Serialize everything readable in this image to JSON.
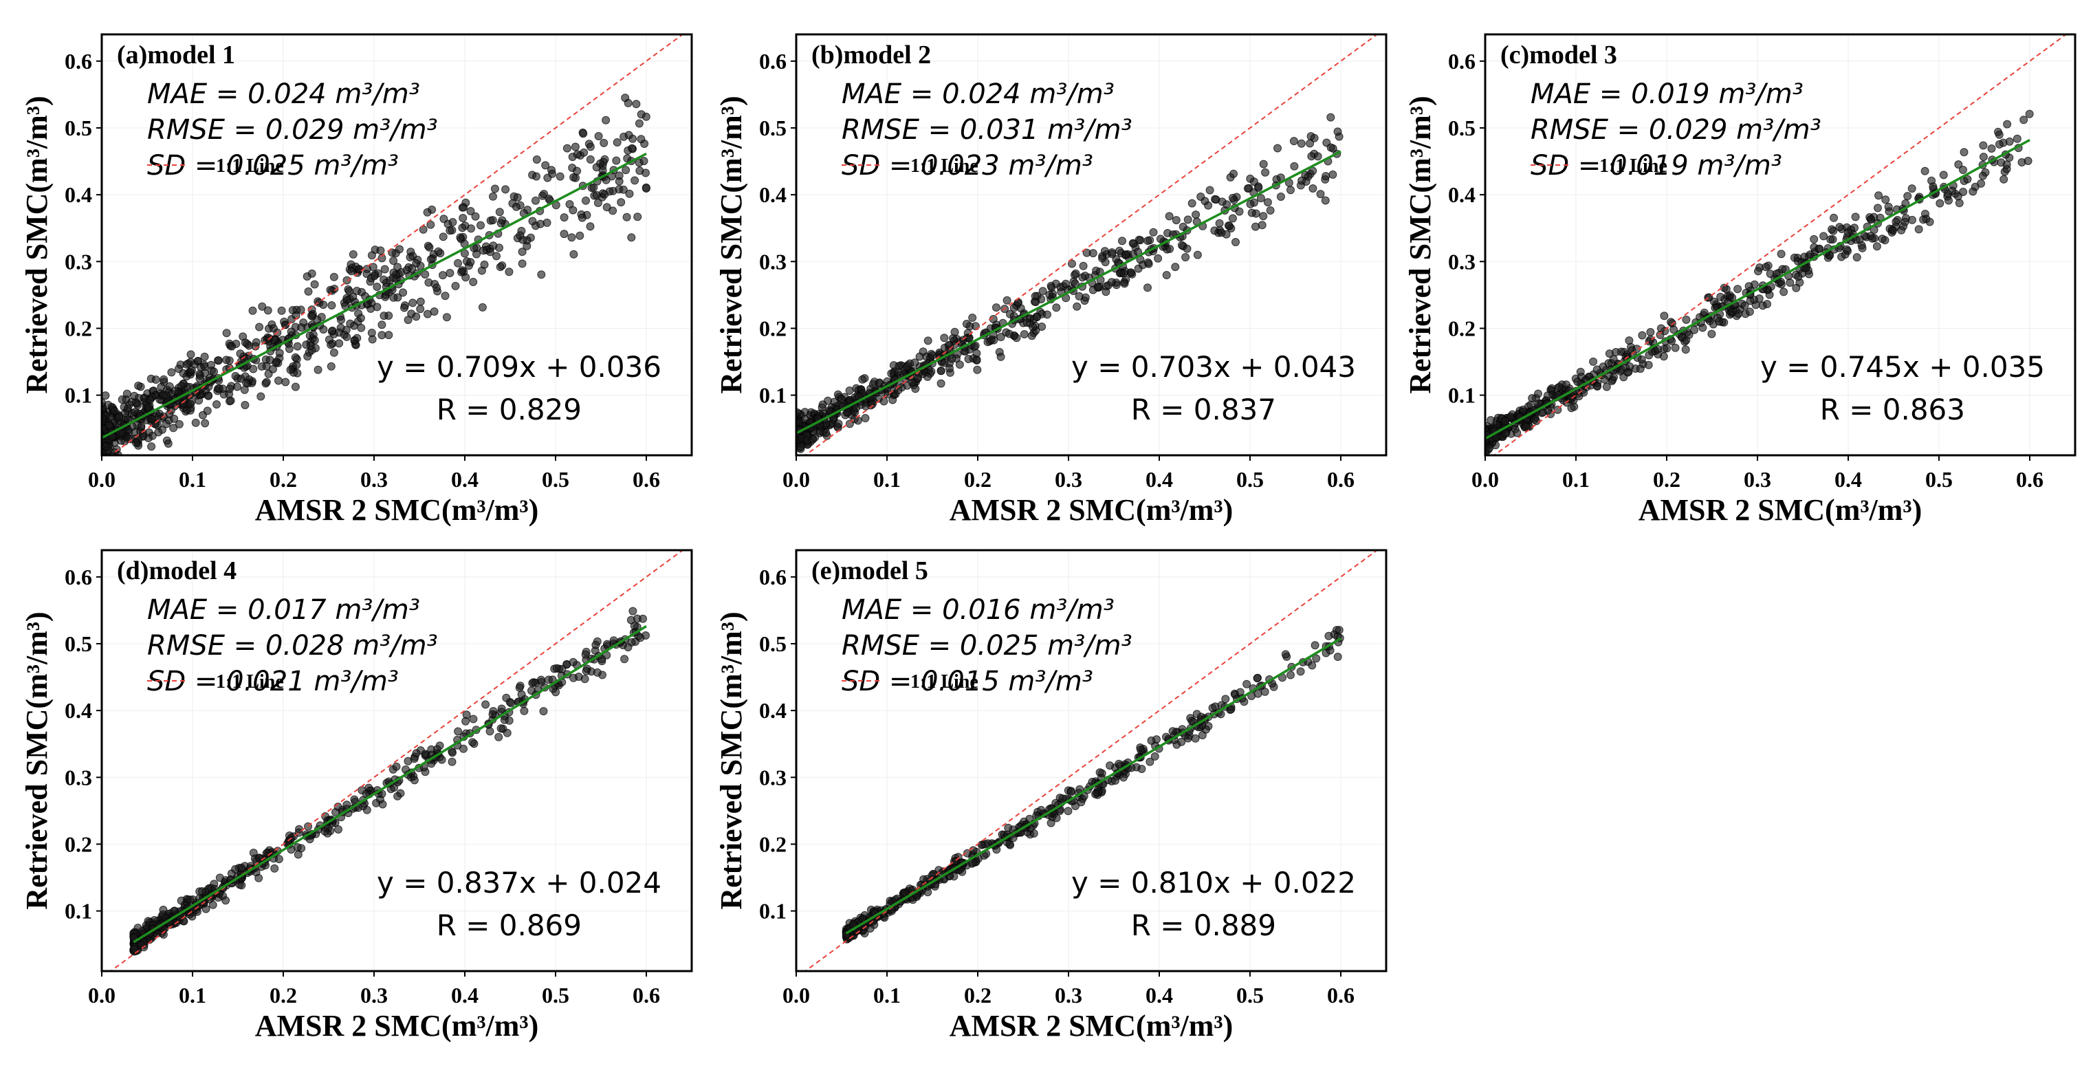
{
  "chart_data": [
    {
      "type": "scatter",
      "panel": "(a)model 1",
      "xlabel": "AMSR 2 SMC(m³/m³)",
      "ylabel": "Retrieved SMC(m³/m³)",
      "xlim": [
        0.0,
        0.65
      ],
      "ylim": [
        0.01,
        0.64
      ],
      "xticks": [
        "0.0",
        "0.1",
        "0.2",
        "0.3",
        "0.4",
        "0.5",
        "0.6"
      ],
      "yticks": [
        "0.1",
        "0.2",
        "0.3",
        "0.4",
        "0.5",
        "0.6"
      ],
      "stats": [
        "MAE = 0.024 m³/m³",
        "RMSE = 0.029 m³/m³",
        "SD = 0.025 m³/m³"
      ],
      "legend": "1:1 Line",
      "equation": "y = 0.709x + 0.036",
      "r_text": "R = 0.829",
      "fit": {
        "slope": 0.709,
        "intercept": 0.036,
        "x_range": [
          0.0,
          0.6
        ]
      },
      "one_to_one": true,
      "sample": {
        "x_range": [
          0.0,
          0.6
        ],
        "noise": 0.05,
        "n": 900,
        "seed": 11
      },
      "colors": {
        "points": "#1a1a1a",
        "fit": "#1e8c1e",
        "identity": "#e8423a"
      }
    },
    {
      "type": "scatter",
      "panel": "(b)model 2",
      "xlabel": "AMSR 2 SMC(m³/m³)",
      "ylabel": "Retrieved SMC(m³/m³)",
      "xlim": [
        0.0,
        0.65
      ],
      "ylim": [
        0.01,
        0.64
      ],
      "xticks": [
        "0.0",
        "0.1",
        "0.2",
        "0.3",
        "0.4",
        "0.5",
        "0.6"
      ],
      "yticks": [
        "0.1",
        "0.2",
        "0.3",
        "0.4",
        "0.5",
        "0.6"
      ],
      "stats": [
        "MAE = 0.024 m³/m³",
        "RMSE = 0.031 m³/m³",
        "SD = 0.023 m³/m³"
      ],
      "legend": "1:1 Line",
      "equation": "y = 0.703x + 0.043",
      "r_text": "R = 0.837",
      "fit": {
        "slope": 0.703,
        "intercept": 0.043,
        "x_range": [
          0.0,
          0.6
        ]
      },
      "one_to_one": true,
      "sample": {
        "x_range": [
          0.0,
          0.6
        ],
        "noise": 0.028,
        "n": 650,
        "seed": 23
      },
      "colors": {
        "points": "#1a1a1a",
        "fit": "#1e8c1e",
        "identity": "#e8423a"
      }
    },
    {
      "type": "scatter",
      "panel": "(c)model 3",
      "xlabel": "AMSR 2 SMC(m³/m³)",
      "ylabel": "Retrieved SMC(m³/m³)",
      "xlim": [
        0.0,
        0.65
      ],
      "ylim": [
        0.01,
        0.64
      ],
      "xticks": [
        "0.0",
        "0.1",
        "0.2",
        "0.3",
        "0.4",
        "0.5",
        "0.6"
      ],
      "yticks": [
        "0.1",
        "0.2",
        "0.3",
        "0.4",
        "0.5",
        "0.6"
      ],
      "stats": [
        "MAE = 0.019 m³/m³",
        "RMSE = 0.029 m³/m³",
        "SD = 0.019 m³/m³"
      ],
      "legend": "1:1 Line",
      "equation": "y = 0.745x + 0.035",
      "r_text": "R = 0.863",
      "fit": {
        "slope": 0.745,
        "intercept": 0.035,
        "x_range": [
          0.0,
          0.6
        ]
      },
      "one_to_one": true,
      "sample": {
        "x_range": [
          0.0,
          0.6
        ],
        "noise": 0.022,
        "n": 600,
        "seed": 37
      },
      "colors": {
        "points": "#1a1a1a",
        "fit": "#1e8c1e",
        "identity": "#e8423a"
      }
    },
    {
      "type": "scatter",
      "panel": "(d)model 4",
      "xlabel": "AMSR 2 SMC(m³/m³)",
      "ylabel": "Retrieved SMC(m³/m³)",
      "xlim": [
        0.0,
        0.65
      ],
      "ylim": [
        0.01,
        0.64
      ],
      "xticks": [
        "0.0",
        "0.1",
        "0.2",
        "0.3",
        "0.4",
        "0.5",
        "0.6"
      ],
      "yticks": [
        "0.1",
        "0.2",
        "0.3",
        "0.4",
        "0.5",
        "0.6"
      ],
      "stats": [
        "MAE = 0.017 m³/m³",
        "RMSE = 0.028 m³/m³",
        "SD = 0.021 m³/m³"
      ],
      "legend": "1:1 Line",
      "equation": "y = 0.837x + 0.024",
      "r_text": "R = 0.869",
      "fit": {
        "slope": 0.837,
        "intercept": 0.024,
        "x_range": [
          0.035,
          0.6
        ]
      },
      "one_to_one": true,
      "sample": {
        "x_range": [
          0.035,
          0.6
        ],
        "noise": 0.016,
        "n": 500,
        "seed": 41
      },
      "colors": {
        "points": "#1a1a1a",
        "fit": "#1e8c1e",
        "identity": "#e8423a"
      }
    },
    {
      "type": "scatter",
      "panel": "(e)model 5",
      "xlabel": "AMSR 2 SMC(m³/m³)",
      "ylabel": "Retrieved SMC(m³/m³)",
      "xlim": [
        0.0,
        0.65
      ],
      "ylim": [
        0.01,
        0.64
      ],
      "xticks": [
        "0.0",
        "0.1",
        "0.2",
        "0.3",
        "0.4",
        "0.5",
        "0.6"
      ],
      "yticks": [
        "0.1",
        "0.2",
        "0.3",
        "0.4",
        "0.5",
        "0.6"
      ],
      "stats": [
        "MAE = 0.016 m³/m³",
        "RMSE = 0.025 m³/m³",
        "SD = 0.015 m³/m³"
      ],
      "legend": "1:1 Line",
      "equation": "y = 0.810x + 0.022",
      "r_text": "R = 0.889",
      "fit": {
        "slope": 0.81,
        "intercept": 0.022,
        "x_range": [
          0.055,
          0.6
        ]
      },
      "one_to_one": true,
      "sample": {
        "x_range": [
          0.055,
          0.6
        ],
        "noise": 0.012,
        "n": 450,
        "seed": 53
      },
      "colors": {
        "points": "#1a1a1a",
        "fit": "#1e8c1e",
        "identity": "#e8423a"
      }
    }
  ]
}
